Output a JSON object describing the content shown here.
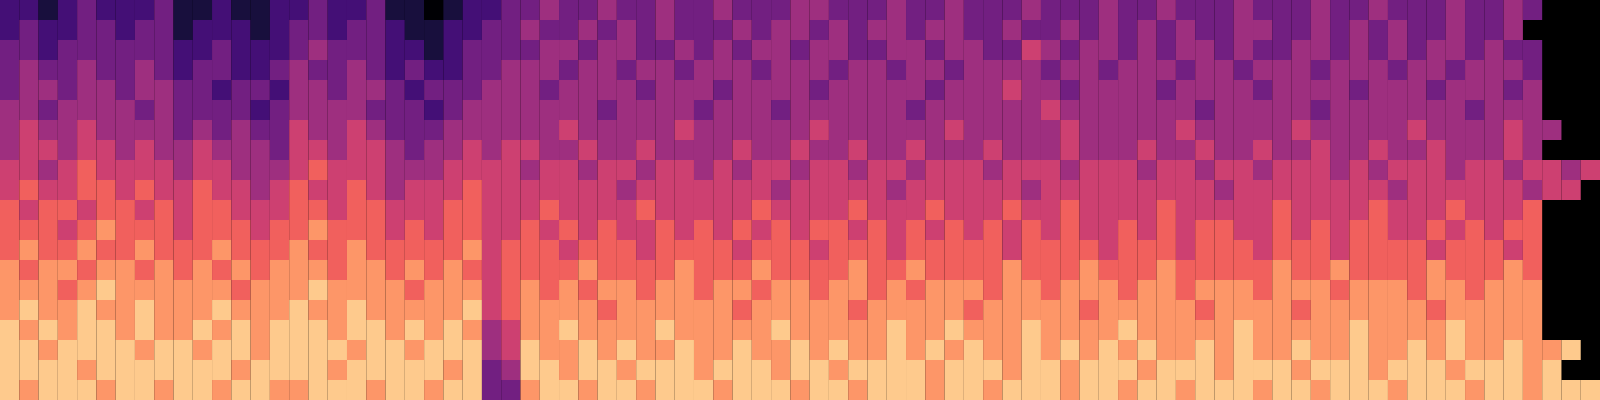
{
  "chart_data": {
    "type": "heatmap",
    "tick_labels": false,
    "zlim": [
      0,
      9
    ],
    "cells": [
      [
        2,
        2,
        1,
        2,
        3,
        2,
        2,
        2,
        3,
        1,
        1,
        2,
        1,
        1,
        2,
        2,
        3,
        2,
        2,
        3,
        1,
        1,
        0,
        1,
        2,
        2,
        3,
        3,
        4,
        3,
        3,
        4,
        3,
        3,
        4,
        3,
        3,
        4,
        3,
        3,
        3,
        4,
        4,
        3,
        3,
        3,
        4,
        3,
        3,
        4,
        3,
        3,
        3,
        4,
        3,
        3,
        3,
        4,
        3,
        3,
        4,
        3,
        3,
        3,
        4,
        3,
        3,
        3,
        4,
        3,
        3,
        4,
        3,
        3,
        3,
        4,
        3,
        3,
        4,
        3
      ],
      [
        2,
        3,
        2,
        2,
        3,
        3,
        2,
        3,
        3,
        1,
        2,
        2,
        2,
        1,
        2,
        3,
        3,
        2,
        3,
        3,
        2,
        1,
        1,
        2,
        2,
        3,
        3,
        4,
        3,
        3,
        4,
        3,
        4,
        3,
        4,
        3,
        3,
        3,
        4,
        3,
        4,
        4,
        3,
        4,
        3,
        4,
        4,
        3,
        4,
        4,
        3,
        3,
        4,
        3,
        3,
        4,
        3,
        4,
        3,
        4,
        3,
        4,
        3,
        3,
        4,
        4,
        3,
        3,
        4,
        3,
        4,
        3,
        4,
        3,
        3,
        4,
        3,
        3,
        4
      ],
      [
        3,
        3,
        2,
        3,
        3,
        3,
        3,
        3,
        3,
        2,
        2,
        3,
        2,
        2,
        2,
        3,
        4,
        3,
        3,
        3,
        2,
        2,
        1,
        2,
        3,
        3,
        3,
        3,
        4,
        4,
        3,
        4,
        4,
        3,
        3,
        4,
        3,
        4,
        3,
        4,
        4,
        3,
        4,
        4,
        3,
        3,
        4,
        4,
        3,
        4,
        4,
        3,
        3,
        5,
        4,
        3,
        4,
        4,
        3,
        4,
        3,
        4,
        4,
        3,
        4,
        3,
        3,
        4,
        4,
        3,
        4,
        3,
        4,
        3,
        4,
        4,
        3,
        4,
        3,
        3
      ],
      [
        3,
        4,
        3,
        3,
        4,
        3,
        3,
        4,
        3,
        2,
        3,
        3,
        2,
        2,
        3,
        4,
        3,
        3,
        4,
        3,
        2,
        3,
        2,
        2,
        3,
        3,
        4,
        4,
        4,
        3,
        4,
        4,
        3,
        4,
        4,
        3,
        4,
        4,
        4,
        3,
        4,
        4,
        4,
        3,
        4,
        4,
        3,
        4,
        4,
        3,
        4,
        4,
        4,
        4,
        3,
        4,
        4,
        3,
        4,
        4,
        4,
        3,
        4,
        4,
        3,
        4,
        4,
        4,
        3,
        4,
        4,
        4,
        3,
        4,
        4,
        3,
        4,
        4,
        4,
        3
      ],
      [
        3,
        4,
        4,
        3,
        4,
        4,
        3,
        4,
        4,
        3,
        3,
        2,
        3,
        3,
        2,
        4,
        4,
        3,
        4,
        4,
        3,
        2,
        3,
        3,
        3,
        4,
        4,
        4,
        3,
        4,
        4,
        4,
        4,
        3,
        4,
        4,
        4,
        3,
        4,
        4,
        4,
        4,
        3,
        4,
        4,
        4,
        4,
        4,
        3,
        4,
        4,
        4,
        5,
        4,
        4,
        3,
        4,
        4,
        4,
        4,
        3,
        4,
        4,
        4,
        4,
        3,
        4,
        4,
        4,
        4,
        3,
        4,
        4,
        4,
        3,
        4,
        4,
        4,
        3,
        4
      ],
      [
        4,
        4,
        3,
        4,
        4,
        4,
        4,
        3,
        4,
        3,
        3,
        3,
        3,
        2,
        3,
        4,
        4,
        4,
        4,
        3,
        3,
        3,
        2,
        3,
        4,
        4,
        4,
        4,
        4,
        4,
        4,
        3,
        4,
        4,
        4,
        4,
        3,
        4,
        4,
        4,
        3,
        4,
        4,
        4,
        4,
        4,
        4,
        3,
        4,
        4,
        4,
        4,
        4,
        4,
        5,
        4,
        4,
        4,
        4,
        4,
        4,
        4,
        3,
        4,
        4,
        4,
        4,
        4,
        3,
        4,
        4,
        4,
        4,
        4,
        4,
        4,
        3,
        4,
        4,
        4
      ],
      [
        4,
        5,
        4,
        4,
        5,
        4,
        4,
        4,
        4,
        3,
        4,
        3,
        4,
        3,
        3,
        5,
        4,
        4,
        5,
        4,
        3,
        3,
        3,
        4,
        4,
        4,
        4,
        4,
        4,
        5,
        4,
        4,
        4,
        4,
        4,
        5,
        4,
        4,
        4,
        4,
        4,
        4,
        5,
        4,
        4,
        4,
        4,
        4,
        4,
        5,
        4,
        4,
        4,
        4,
        4,
        5,
        4,
        4,
        4,
        4,
        4,
        5,
        4,
        4,
        4,
        4,
        4,
        5,
        4,
        4,
        4,
        4,
        4,
        5,
        4,
        4,
        4,
        4,
        5,
        4,
        4
      ],
      [
        4,
        5,
        5,
        4,
        5,
        5,
        4,
        5,
        4,
        4,
        5,
        4,
        4,
        4,
        3,
        5,
        5,
        4,
        5,
        5,
        4,
        3,
        4,
        4,
        5,
        4,
        5,
        5,
        4,
        4,
        5,
        4,
        4,
        5,
        4,
        4,
        4,
        4,
        5,
        4,
        4,
        5,
        4,
        4,
        5,
        4,
        4,
        5,
        4,
        4,
        4,
        5,
        4,
        4,
        4,
        5,
        4,
        4,
        4,
        5,
        4,
        4,
        5,
        4,
        4,
        5,
        4,
        4,
        5,
        4,
        4,
        5,
        4,
        4,
        5,
        4,
        4,
        4,
        5,
        4
      ],
      [
        5,
        5,
        4,
        5,
        6,
        5,
        5,
        5,
        5,
        4,
        5,
        5,
        4,
        4,
        4,
        5,
        6,
        5,
        5,
        5,
        4,
        4,
        4,
        5,
        5,
        5,
        5,
        4,
        5,
        5,
        4,
        5,
        5,
        4,
        5,
        5,
        4,
        5,
        4,
        5,
        5,
        4,
        5,
        5,
        4,
        5,
        5,
        4,
        5,
        5,
        5,
        4,
        5,
        5,
        5,
        4,
        5,
        5,
        5,
        4,
        5,
        5,
        4,
        5,
        5,
        4,
        5,
        5,
        5,
        4,
        5,
        4,
        5,
        5,
        5,
        4,
        5,
        5,
        4,
        5,
        5,
        4,
        5
      ],
      [
        5,
        6,
        5,
        5,
        6,
        6,
        5,
        6,
        5,
        5,
        6,
        5,
        5,
        4,
        5,
        6,
        5,
        5,
        6,
        5,
        4,
        5,
        5,
        5,
        6,
        5,
        5,
        5,
        5,
        5,
        5,
        5,
        4,
        5,
        5,
        5,
        5,
        5,
        5,
        5,
        4,
        5,
        5,
        5,
        5,
        5,
        4,
        5,
        5,
        5,
        5,
        5,
        5,
        4,
        5,
        5,
        5,
        5,
        5,
        5,
        5,
        5,
        5,
        4,
        5,
        5,
        5,
        5,
        5,
        5,
        5,
        5,
        4,
        5,
        5,
        5,
        5,
        5,
        5,
        4,
        5,
        5
      ],
      [
        6,
        5,
        6,
        6,
        5,
        6,
        6,
        5,
        6,
        5,
        6,
        6,
        5,
        5,
        5,
        6,
        6,
        5,
        6,
        6,
        5,
        5,
        5,
        6,
        6,
        5,
        5,
        5,
        6,
        5,
        5,
        5,
        5,
        6,
        5,
        5,
        5,
        5,
        5,
        6,
        5,
        5,
        5,
        5,
        6,
        5,
        5,
        5,
        6,
        5,
        5,
        5,
        6,
        5,
        5,
        6,
        5,
        5,
        5,
        5,
        6,
        5,
        5,
        5,
        5,
        5,
        6,
        5,
        5,
        5,
        5,
        6,
        5,
        5,
        5,
        6,
        5,
        5,
        5,
        6
      ],
      [
        6,
        6,
        6,
        5,
        6,
        7,
        6,
        6,
        6,
        5,
        6,
        6,
        6,
        5,
        6,
        6,
        7,
        6,
        6,
        6,
        5,
        6,
        5,
        6,
        6,
        5,
        5,
        6,
        5,
        6,
        5,
        6,
        5,
        5,
        6,
        5,
        6,
        5,
        6,
        5,
        6,
        5,
        6,
        6,
        5,
        6,
        5,
        6,
        5,
        6,
        5,
        6,
        5,
        6,
        5,
        6,
        5,
        5,
        6,
        5,
        6,
        5,
        6,
        6,
        5,
        5,
        6,
        5,
        6,
        5,
        6,
        6,
        5,
        5,
        6,
        5,
        6,
        5,
        6,
        6
      ],
      [
        6,
        7,
        6,
        6,
        7,
        6,
        6,
        7,
        6,
        6,
        6,
        7,
        6,
        6,
        6,
        7,
        6,
        6,
        7,
        6,
        6,
        6,
        6,
        6,
        7,
        5,
        6,
        6,
        6,
        5,
        6,
        6,
        6,
        5,
        6,
        6,
        6,
        6,
        5,
        6,
        6,
        6,
        5,
        6,
        6,
        6,
        5,
        6,
        6,
        6,
        6,
        6,
        5,
        6,
        6,
        6,
        6,
        5,
        6,
        6,
        6,
        5,
        6,
        6,
        6,
        5,
        6,
        6,
        6,
        5,
        6,
        6,
        6,
        6,
        5,
        6,
        6,
        6,
        5,
        6
      ],
      [
        7,
        6,
        7,
        7,
        6,
        7,
        7,
        6,
        7,
        6,
        7,
        6,
        7,
        6,
        7,
        7,
        7,
        6,
        7,
        7,
        6,
        7,
        6,
        7,
        6,
        5,
        6,
        6,
        6,
        6,
        7,
        6,
        6,
        6,
        6,
        7,
        6,
        6,
        6,
        7,
        6,
        6,
        6,
        6,
        7,
        6,
        6,
        7,
        6,
        6,
        6,
        6,
        7,
        6,
        6,
        6,
        7,
        6,
        6,
        6,
        7,
        6,
        6,
        6,
        6,
        6,
        7,
        6,
        6,
        7,
        6,
        6,
        6,
        6,
        7,
        6,
        6,
        6,
        7,
        6
      ],
      [
        7,
        7,
        7,
        6,
        7,
        8,
        7,
        7,
        7,
        7,
        7,
        7,
        6,
        7,
        7,
        7,
        8,
        7,
        7,
        7,
        7,
        6,
        7,
        7,
        7,
        5,
        6,
        7,
        6,
        7,
        6,
        7,
        7,
        6,
        7,
        7,
        6,
        7,
        7,
        6,
        7,
        7,
        6,
        7,
        7,
        6,
        7,
        6,
        7,
        7,
        7,
        6,
        7,
        7,
        6,
        7,
        7,
        7,
        6,
        7,
        7,
        6,
        7,
        7,
        7,
        6,
        7,
        7,
        7,
        6,
        7,
        7,
        7,
        6,
        7,
        7,
        6,
        7,
        7,
        7
      ],
      [
        7,
        8,
        7,
        7,
        8,
        7,
        7,
        8,
        7,
        7,
        7,
        8,
        7,
        7,
        7,
        8,
        7,
        7,
        8,
        7,
        7,
        7,
        7,
        7,
        8,
        5,
        6,
        7,
        7,
        7,
        7,
        6,
        7,
        7,
        7,
        7,
        7,
        7,
        6,
        7,
        7,
        7,
        7,
        7,
        6,
        7,
        7,
        7,
        7,
        7,
        6,
        7,
        7,
        7,
        7,
        7,
        6,
        7,
        7,
        7,
        7,
        7,
        6,
        7,
        7,
        7,
        7,
        6,
        7,
        7,
        7,
        7,
        7,
        7,
        6,
        7,
        7,
        7,
        7,
        7
      ],
      [
        8,
        7,
        8,
        7,
        8,
        8,
        7,
        8,
        7,
        7,
        8,
        7,
        8,
        7,
        8,
        8,
        8,
        7,
        8,
        8,
        7,
        8,
        7,
        8,
        7,
        4,
        5,
        7,
        7,
        8,
        7,
        7,
        7,
        7,
        8,
        7,
        7,
        7,
        7,
        7,
        8,
        7,
        7,
        7,
        7,
        7,
        8,
        7,
        7,
        8,
        7,
        7,
        7,
        8,
        7,
        7,
        7,
        7,
        8,
        7,
        7,
        7,
        7,
        7,
        8,
        7,
        7,
        7,
        7,
        7,
        8,
        7,
        7,
        7,
        7,
        8,
        7,
        7,
        7,
        7
      ],
      [
        8,
        8,
        7,
        8,
        8,
        8,
        8,
        7,
        8,
        8,
        7,
        8,
        8,
        7,
        8,
        8,
        8,
        8,
        7,
        8,
        8,
        7,
        8,
        8,
        8,
        4,
        5,
        8,
        7,
        7,
        8,
        7,
        8,
        7,
        7,
        8,
        7,
        7,
        8,
        7,
        7,
        8,
        7,
        8,
        7,
        7,
        8,
        7,
        8,
        7,
        8,
        7,
        7,
        8,
        7,
        8,
        7,
        8,
        7,
        8,
        7,
        7,
        8,
        7,
        8,
        7,
        7,
        8,
        7,
        7,
        8,
        7,
        7,
        8,
        7,
        8,
        7,
        7,
        8,
        7,
        7,
        8
      ],
      [
        8,
        8,
        8,
        8,
        7,
        8,
        8,
        8,
        8,
        8,
        8,
        8,
        7,
        8,
        8,
        8,
        8,
        7,
        8,
        8,
        8,
        8,
        8,
        7,
        8,
        3,
        4,
        8,
        8,
        7,
        8,
        8,
        7,
        8,
        8,
        8,
        7,
        8,
        8,
        8,
        7,
        8,
        8,
        7,
        8,
        8,
        8,
        8,
        7,
        8,
        8,
        8,
        7,
        8,
        8,
        7,
        8,
        8,
        8,
        7,
        8,
        8,
        8,
        7,
        8,
        8,
        8,
        7,
        8,
        8,
        8,
        7,
        8,
        8,
        8,
        7,
        8,
        8,
        8,
        7,
        8
      ],
      [
        8,
        7,
        8,
        8,
        8,
        7,
        8,
        8,
        7,
        8,
        8,
        7,
        8,
        8,
        7,
        7,
        8,
        8,
        8,
        7,
        8,
        8,
        7,
        8,
        8,
        3,
        3,
        7,
        8,
        8,
        7,
        8,
        8,
        7,
        8,
        8,
        8,
        7,
        8,
        8,
        8,
        7,
        8,
        8,
        7,
        8,
        8,
        8,
        7,
        8,
        8,
        7,
        8,
        8,
        8,
        7,
        8,
        8,
        7,
        8,
        8,
        7,
        8,
        8,
        8,
        7,
        8,
        8,
        7,
        8,
        8,
        8,
        7,
        8,
        8,
        8,
        7,
        8,
        8,
        7,
        8,
        8,
        8
      ]
    ]
  }
}
